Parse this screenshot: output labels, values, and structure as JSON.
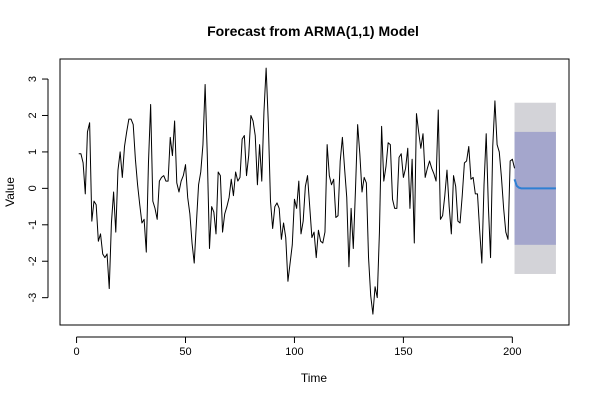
{
  "chart_data": {
    "type": "line",
    "title": "Forecast from ARMA(1,1) Model",
    "xlabel": "Time",
    "ylabel": "Value",
    "xlim": [
      -7.6,
      226
    ],
    "ylim": [
      -3.75,
      3.55
    ],
    "x_ticks": [
      0,
      50,
      100,
      150,
      200
    ],
    "y_ticks": [
      -3,
      -2,
      -1,
      0,
      1,
      2,
      3
    ],
    "grid": false,
    "legend": "none",
    "colors": {
      "observed": "#000000",
      "forecast_mean": "#2f7fd3",
      "band_95": "#d3d3d8",
      "band_80": "#a4a6cc"
    },
    "series": [
      {
        "x_start": 1,
        "values": [
          0.95,
          0.95,
          0.7,
          -0.15,
          1.55,
          1.8,
          -0.9,
          -0.35,
          -0.45,
          -1.45,
          -1.25,
          -1.8,
          -1.9,
          -1.8,
          -2.75,
          -0.95,
          -0.1,
          -1.2,
          0.5,
          1.0,
          0.3,
          1.15,
          1.55,
          1.9,
          1.9,
          1.75,
          0.8,
          0.1,
          -0.45,
          -0.95,
          -0.85,
          -1.75,
          0.7,
          2.3,
          -0.35,
          -0.55,
          -0.85,
          0.2,
          0.3,
          0.35,
          0.2,
          0.2,
          1.4,
          0.9,
          1.85,
          0.15,
          -0.1,
          0.2,
          0.35,
          0.65,
          -0.25,
          -0.7,
          -1.5,
          -2.05,
          -0.95,
          0.1,
          0.45,
          1.2,
          2.85,
          0.9,
          -1.65,
          -0.5,
          -0.65,
          -1.25,
          0.45,
          0.35,
          -1.2,
          -0.7,
          -0.5,
          -0.25,
          0.25,
          -0.2,
          0.45,
          0.2,
          0.3,
          1.35,
          1.45,
          0.35,
          0.9,
          2.0,
          1.85,
          1.45,
          0.1,
          1.2,
          0.2,
          2.1,
          3.3,
          1.8,
          -0.35,
          -1.1,
          -0.5,
          -0.4,
          -0.55,
          -1.4,
          -0.95,
          -1.35,
          -2.55,
          -2.05,
          -1.55,
          -0.3,
          -0.55,
          0.2,
          -1.25,
          -0.9,
          0.05,
          0.35,
          -0.5,
          -1.35,
          -1.2,
          -1.9,
          -1.15,
          -1.45,
          -1.5,
          -1.2,
          1.2,
          0.35,
          0.1,
          0.25,
          -0.8,
          -0.75,
          0.75,
          1.4,
          0.55,
          -0.25,
          -2.15,
          -0.55,
          -1.65,
          -0.05,
          1.75,
          0.95,
          -0.1,
          0.3,
          0.15,
          -1.9,
          -2.95,
          -3.45,
          -2.7,
          -3.0,
          -1.2,
          1.7,
          0.2,
          0.6,
          1.25,
          1.2,
          -0.3,
          -0.55,
          -0.55,
          0.85,
          0.95,
          0.3,
          0.55,
          1.1,
          -0.55,
          0.8,
          -1.5,
          2.05,
          1.55,
          1.1,
          1.5,
          0.3,
          0.55,
          0.75,
          0.55,
          0.4,
          0.2,
          2.15,
          -0.85,
          -0.75,
          -0.2,
          0.5,
          -0.5,
          -1.25,
          0.35,
          0.05,
          -0.9,
          -0.95,
          -0.2,
          0.7,
          0.75,
          1.15,
          0.25,
          0.3,
          -0.15,
          -0.15,
          -1.15,
          -2.05,
          0.1,
          1.5,
          -0.5,
          -1.9,
          1.15,
          2.4,
          1.2,
          1.0,
          0.3,
          -0.55,
          -1.2,
          -1.4,
          0.75,
          0.8,
          0.55
        ]
      },
      {
        "x_start": 201,
        "values": [
          0.25,
          0.07,
          0.02,
          0.0,
          0.0,
          0.0,
          0.0,
          0.0,
          0.0,
          0.0,
          0.0,
          0.0,
          0.0,
          0.0,
          0.0,
          0.0,
          0.0,
          0.0,
          0.0,
          0.0
        ]
      }
    ],
    "bands": [
      {
        "level": "95%",
        "x_start": 201,
        "x_end": 220,
        "lower": -2.35,
        "upper": 2.35
      },
      {
        "level": "80%",
        "x_start": 201,
        "x_end": 220,
        "lower": -1.55,
        "upper": 1.55
      }
    ]
  }
}
